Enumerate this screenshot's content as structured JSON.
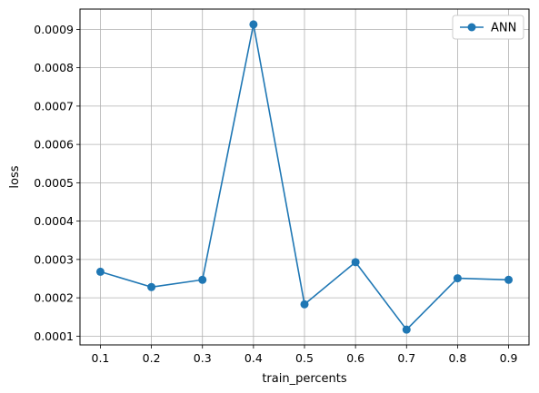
{
  "chart_data": {
    "type": "line",
    "xlabel": "train_percents",
    "ylabel": "loss",
    "x": [
      0.1,
      0.2,
      0.3,
      0.4,
      0.5,
      0.6,
      0.7,
      0.8,
      0.9
    ],
    "series": [
      {
        "name": "ANN",
        "color": "#1f77b4",
        "marker": "circle",
        "values": [
          0.000268,
          0.000228,
          0.000247,
          0.000913,
          0.000183,
          0.000293,
          0.000117,
          0.000251,
          0.000247
        ]
      }
    ],
    "xlim": [
      0.06,
      0.94
    ],
    "ylim": [
      7.72e-05,
      0.000953
    ],
    "xticks": [
      0.1,
      0.2,
      0.3,
      0.4,
      0.5,
      0.6,
      0.7,
      0.8,
      0.9
    ],
    "xtick_labels": [
      "0.1",
      "0.2",
      "0.3",
      "0.4",
      "0.5",
      "0.6",
      "0.7",
      "0.8",
      "0.9"
    ],
    "yticks": [
      0.0001,
      0.0002,
      0.0003,
      0.0004,
      0.0005,
      0.0006,
      0.0007,
      0.0008,
      0.0009
    ],
    "ytick_labels": [
      "0.0001",
      "0.0002",
      "0.0003",
      "0.0004",
      "0.0005",
      "0.0006",
      "0.0007",
      "0.0008",
      "0.0009"
    ],
    "grid": true,
    "legend": "top-right"
  }
}
